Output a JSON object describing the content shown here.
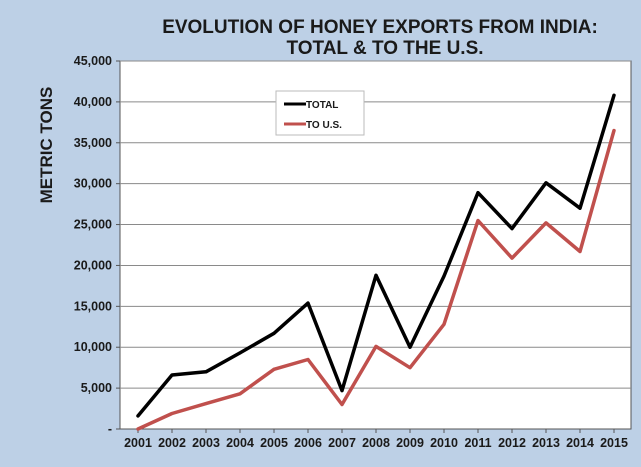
{
  "chart_data": {
    "type": "line",
    "title_line1": "EVOLUTION OF HONEY EXPORTS FROM INDIA:",
    "title_line2": "TOTAL & TO THE U.S.",
    "ylabel": "METRIC TONS",
    "xlabel": "",
    "ylim": [
      0,
      45000
    ],
    "yticks": [
      0,
      5000,
      10000,
      15000,
      20000,
      25000,
      30000,
      35000,
      40000,
      45000
    ],
    "ytick_labels": [
      "-",
      "5,000",
      "10,000",
      "15,000",
      "20,000",
      "25,000",
      "30,000",
      "35,000",
      "40,000",
      "45,000"
    ],
    "categories": [
      "2001",
      "2002",
      "2003",
      "2004",
      "2005",
      "2006",
      "2007",
      "2008",
      "2009",
      "2010",
      "2011",
      "2012",
      "2013",
      "2014",
      "2015"
    ],
    "series": [
      {
        "name": "TOTAL",
        "color": "#000000",
        "values": [
          1600,
          6600,
          7000,
          9300,
          11700,
          15400,
          4700,
          18800,
          10000,
          18700,
          28900,
          24500,
          30100,
          27000,
          40800
        ]
      },
      {
        "name": "TO U.S.",
        "color": "#c0504d",
        "values": [
          0,
          1900,
          3100,
          4300,
          7300,
          8500,
          3000,
          10100,
          7500,
          12800,
          25500,
          20900,
          25200,
          21700,
          36500
        ]
      }
    ],
    "grid": true,
    "legend_position": "top-center"
  }
}
